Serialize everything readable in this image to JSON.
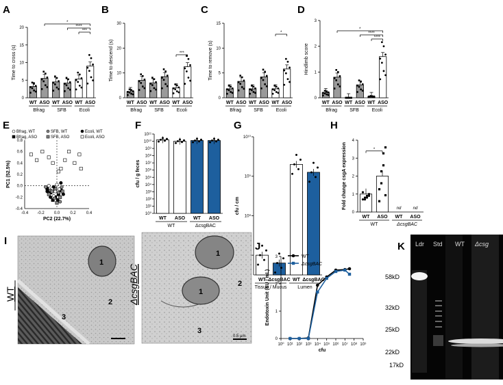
{
  "figure": {
    "panel_labels": [
      "A",
      "B",
      "C",
      "D",
      "E",
      "F",
      "G",
      "H",
      "I",
      "J",
      "K"
    ],
    "chart_data": [
      {
        "panel": "A",
        "type": "bar",
        "ylabel": "Time to cross (s)",
        "ylim": [
          0,
          20
        ],
        "yticks": [
          "0",
          "5",
          "10",
          "15",
          "20"
        ],
        "categories": [
          "WT",
          "ASO",
          "WT",
          "ASO",
          "WT",
          "ASO"
        ],
        "groups": [
          "Bfrag",
          "SFB",
          "Ecoli"
        ],
        "values": [
          3.2,
          5.5,
          4.5,
          4.2,
          5.3,
          9.0
        ],
        "bar_colors": [
          "#9a9a9a",
          "#9a9a9a",
          "#9a9a9a",
          "#9a9a9a",
          "#ffffff",
          "#ffffff"
        ],
        "significance": [
          "*",
          "****",
          "***"
        ]
      },
      {
        "panel": "B",
        "type": "bar",
        "ylabel": "Time to descend (s)",
        "ylim": [
          0,
          30
        ],
        "yticks": [
          "0",
          "10",
          "20",
          "30"
        ],
        "categories": [
          "WT",
          "ASO",
          "WT",
          "ASO",
          "WT",
          "ASO"
        ],
        "groups": [
          "Bfrag",
          "SFB",
          "Ecoli"
        ],
        "values": [
          2.5,
          7.0,
          6.0,
          8.5,
          4.0,
          12.5
        ],
        "bar_colors": [
          "#9a9a9a",
          "#9a9a9a",
          "#9a9a9a",
          "#9a9a9a",
          "#ffffff",
          "#ffffff"
        ],
        "significance": [
          "***"
        ]
      },
      {
        "panel": "C",
        "type": "bar",
        "ylabel": "Time to remove (s)",
        "ylim": [
          0,
          15
        ],
        "yticks": [
          "0",
          "5",
          "10",
          "15"
        ],
        "categories": [
          "WT",
          "ASO",
          "WT",
          "ASO",
          "WT",
          "ASO"
        ],
        "groups": [
          "Bfrag",
          "SFB",
          "Ecoli"
        ],
        "values": [
          1.8,
          3.3,
          1.8,
          4.2,
          1.8,
          5.8
        ],
        "bar_colors": [
          "#9a9a9a",
          "#9a9a9a",
          "#9a9a9a",
          "#9a9a9a",
          "#ffffff",
          "#ffffff"
        ],
        "significance": [
          "*"
        ]
      },
      {
        "panel": "D",
        "type": "bar",
        "ylabel": "Hindlimb score",
        "ylim": [
          0,
          3
        ],
        "yticks": [
          "0",
          "1",
          "2",
          "3"
        ],
        "categories": [
          "WT",
          "ASO",
          "WT",
          "ASO",
          "WT",
          "ASO"
        ],
        "groups": [
          "Bfrag",
          "SFB",
          "Ecoli"
        ],
        "values": [
          0.2,
          0.8,
          0.0,
          0.5,
          0.05,
          1.6
        ],
        "bar_colors": [
          "#9a9a9a",
          "#9a9a9a",
          "#9a9a9a",
          "#9a9a9a",
          "#ffffff",
          "#ffffff"
        ],
        "significance": [
          "*",
          "****",
          "****"
        ]
      },
      {
        "panel": "E",
        "type": "scatter",
        "xlabel": "PC2 (22.7%)",
        "ylabel": "PC1 (52.5%)",
        "xlim": [
          -0.4,
          0.4
        ],
        "ylim": [
          -0.4,
          0.8
        ],
        "xticks": [
          "-0.4",
          "-0.2",
          "0.0",
          "0.2",
          "0.4"
        ],
        "yticks": [
          "-0.4",
          "-0.2",
          "0.0",
          "0.2",
          "0.4",
          "0.6",
          "0.8"
        ],
        "legend": [
          "Bfrag, WT",
          "SFB, WT",
          "Ecoli, WT",
          "Bfrag, ASO",
          "SFB, ASO",
          "Ecoli, ASO"
        ],
        "series": [
          {
            "name": "Ecoli, ASO",
            "points": [
              [
                -0.32,
                0.55
              ],
              [
                -0.25,
                0.45
              ],
              [
                -0.18,
                0.6
              ],
              [
                -0.1,
                0.5
              ],
              [
                0.05,
                0.3
              ],
              [
                0.1,
                0.45
              ],
              [
                0.22,
                0.4
              ],
              [
                0.28,
                0.55
              ],
              [
                0.15,
                0.6
              ],
              [
                0.02,
                0.25
              ],
              [
                -0.05,
                0.4
              ],
              [
                0.3,
                0.3
              ]
            ]
          },
          {
            "name": "Bfrag, ASO",
            "points": [
              [
                -0.12,
                -0.05
              ],
              [
                -0.08,
                -0.12
              ],
              [
                -0.02,
                -0.2
              ],
              [
                0.02,
                -0.15
              ],
              [
                0.05,
                -0.08
              ],
              [
                -0.05,
                -0.25
              ]
            ]
          },
          {
            "name": "Bfrag, WT",
            "points": [
              [
                -0.1,
                0.0
              ],
              [
                -0.06,
                -0.05
              ],
              [
                -0.02,
                -0.1
              ],
              [
                0.0,
                0.02
              ],
              [
                0.03,
                -0.06
              ],
              [
                -0.04,
                -0.18
              ]
            ]
          },
          {
            "name": "SFB, WT",
            "points": [
              [
                -0.14,
                -0.02
              ],
              [
                -0.08,
                -0.08
              ],
              [
                0.02,
                -0.12
              ],
              [
                0.06,
                -0.02
              ],
              [
                -0.03,
                -0.22
              ],
              [
                0.04,
                -0.28
              ]
            ]
          },
          {
            "name": "SFB, ASO",
            "points": [
              [
                -0.1,
                -0.15
              ],
              [
                -0.02,
                -0.05
              ],
              [
                0.04,
                -0.2
              ],
              [
                0.07,
                -0.1
              ],
              [
                -0.06,
                -0.1
              ],
              [
                0.0,
                -0.3
              ]
            ]
          },
          {
            "name": "Ecoli, WT",
            "points": [
              [
                -0.12,
                -0.1
              ],
              [
                -0.04,
                -0.02
              ],
              [
                0.01,
                -0.25
              ],
              [
                0.08,
                -0.15
              ],
              [
                -0.08,
                -0.2
              ],
              [
                0.05,
                0.05
              ]
            ]
          }
        ]
      },
      {
        "panel": "F",
        "type": "bar",
        "ylabel": "cfu / g feces",
        "ylim_log10": [
          0,
          11
        ],
        "yticks": [
          "10⁰",
          "10¹",
          "10²",
          "10³",
          "10⁴",
          "10⁵",
          "10⁶",
          "10⁷",
          "10⁸",
          "10⁹",
          "10¹⁰",
          "10¹¹"
        ],
        "categories": [
          "WT",
          "ASO",
          "WT",
          "ASO"
        ],
        "groups": [
          "WT",
          "ΔcsgBAC"
        ],
        "values_log10": [
          10.2,
          10.0,
          10.1,
          10.1
        ],
        "bar_colors": [
          "#ffffff",
          "#ffffff",
          "#1d5f9e",
          "#1d5f9e"
        ]
      },
      {
        "panel": "G",
        "type": "bar",
        "ylabel": "cfu / cm",
        "ylim_log10": [
          6.5,
          10
        ],
        "yticks": [
          "10⁷",
          "10⁸",
          "10⁹",
          "10¹⁰"
        ],
        "categories": [
          "WT",
          "ΔcsgBAC",
          "WT",
          "ΔcsgBAC"
        ],
        "groups": [
          "Tissue / Mucus",
          "Lumen"
        ],
        "values_log10": [
          7.0,
          6.8,
          9.3,
          9.1
        ],
        "bar_colors": [
          "#ffffff",
          "#1d5f9e",
          "#ffffff",
          "#1d5f9e"
        ]
      },
      {
        "panel": "H",
        "type": "bar",
        "ylabel": "Fold change csgA expression",
        "ylim": [
          0,
          4
        ],
        "yticks": [
          "0",
          "1",
          "2",
          "3",
          "4"
        ],
        "categories": [
          "WT",
          "ASO",
          "WT",
          "ASO"
        ],
        "groups": [
          "WT",
          "ΔcsgBAC"
        ],
        "values": [
          1.0,
          2.0,
          0,
          0
        ],
        "data_labels": [
          "",
          "",
          "nd",
          "nd"
        ],
        "significance": [
          "*"
        ]
      },
      {
        "panel": "J",
        "type": "line",
        "xlabel": "cfu",
        "ylabel": "Endotoxin Unit (EU / mL)",
        "xlim_log10": [
          0,
          9
        ],
        "ylim": [
          0,
          3
        ],
        "yticks": [
          "0",
          "1",
          "2",
          "3"
        ],
        "xticks": [
          "10⁰",
          "10¹",
          "10²",
          "10³",
          "10⁴",
          "10⁵",
          "10⁶",
          "10⁷",
          "10⁸",
          "10⁹"
        ],
        "series": [
          {
            "name": "WT",
            "color": "#000000",
            "x_log10": [
              1,
              2,
              3,
              4,
              5,
              6,
              7,
              7.5
            ],
            "y": [
              0.0,
              0.0,
              0.02,
              1.95,
              2.25,
              2.5,
              2.52,
              2.55
            ]
          },
          {
            "name": "ΔcsgBAC",
            "color": "#1d5f9e",
            "x_log10": [
              1,
              2,
              3,
              4,
              5,
              6,
              7,
              7.5
            ],
            "y": [
              0.0,
              0.0,
              0.0,
              1.7,
              2.2,
              2.45,
              2.5,
              2.35
            ]
          }
        ]
      }
    ],
    "panel_I": {
      "left_label": "WT",
      "right_label": "ΔcsgBAC",
      "markers": [
        "1",
        "2",
        "3"
      ],
      "scale_bar": "0.5 µm"
    },
    "panel_K": {
      "lane_labels": [
        "Ldr",
        "Std",
        "WT",
        "Δcsg"
      ],
      "size_markers": [
        "58kD",
        "32kD",
        "25kD",
        "22kD",
        "17kD"
      ]
    }
  }
}
